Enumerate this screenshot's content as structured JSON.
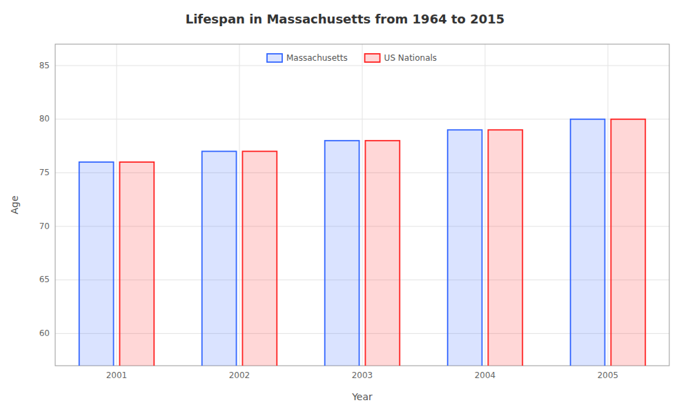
{
  "chart_data": {
    "type": "bar",
    "title": "Lifespan in Massachusetts from 1964 to 2015",
    "x_label": "Year",
    "y_label": "Age",
    "categories": [
      "2001",
      "2002",
      "2003",
      "2004",
      "2005"
    ],
    "series": [
      {
        "name": "Massachusetts",
        "color": "#3366ff",
        "values": [
          76,
          77,
          78,
          79,
          80
        ]
      },
      {
        "name": "US Nationals",
        "color": "#ff2222",
        "values": [
          76,
          77,
          78,
          79,
          80
        ]
      }
    ],
    "ylim": [
      57,
      87
    ],
    "yticks": [
      60,
      65,
      70,
      75,
      80,
      85
    ],
    "grid": true,
    "legend": "top"
  }
}
